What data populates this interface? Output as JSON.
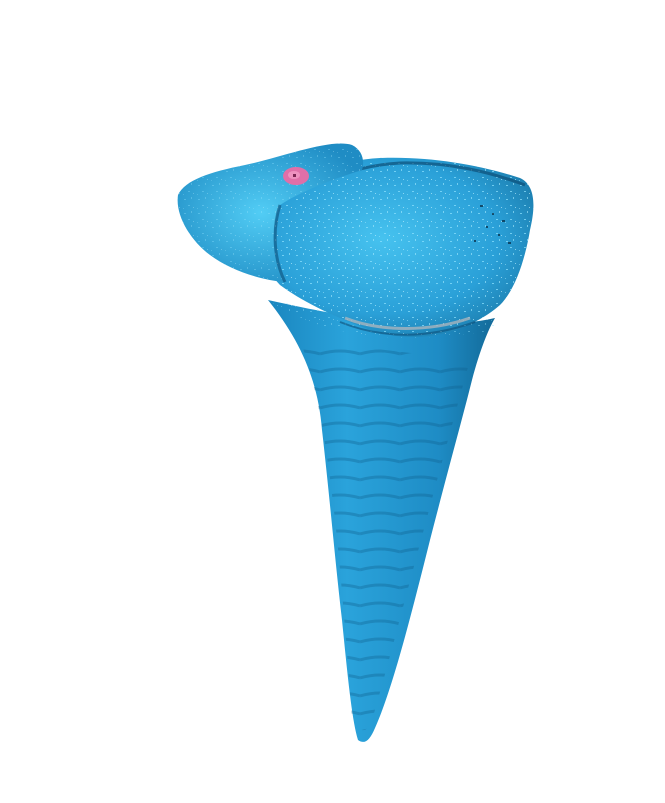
{
  "scene": {
    "object": "tooth-mesh",
    "colors": {
      "background": "#ffffff",
      "mesh_base": "#2a9fd6",
      "mesh_light": "#4cc6f2",
      "mesh_dark": "#166f9f",
      "mesh_shadow": "#0d4f78",
      "marker": "#e06fa8"
    }
  }
}
